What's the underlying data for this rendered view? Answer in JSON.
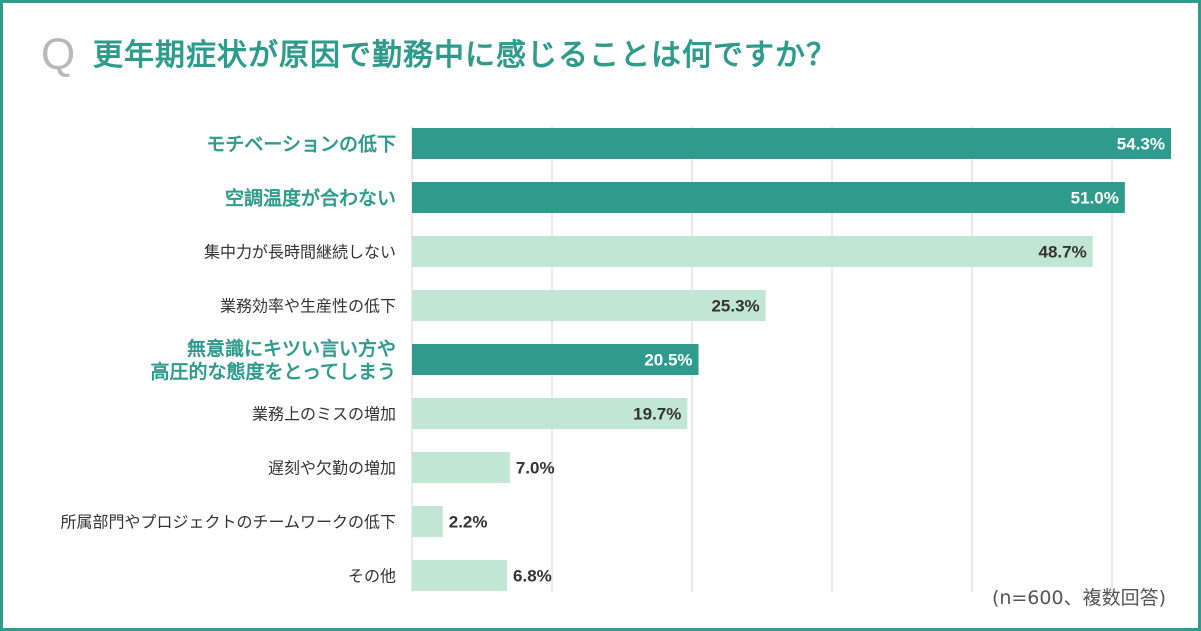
{
  "question_mark": "Q",
  "title": "更年期症状が原因で勤務中に感じることは何ですか？",
  "note": "(n=600、複数回答)",
  "colors": {
    "highlight": "#2e9b8c",
    "normal": "#c2e6d4",
    "grid": "#d6d6d6",
    "label_on_dark": "#ffffff",
    "label_on_light": "#333333"
  },
  "chart_data": {
    "type": "bar",
    "orientation": "horizontal",
    "xlim": [
      0,
      54.3
    ],
    "grid": true,
    "value_suffix": "%",
    "categories": [
      [
        "モチベーションの低下"
      ],
      [
        "空調温度が合わない"
      ],
      [
        "集中力が長時間継続しない"
      ],
      [
        "業務効率や生産性の低下"
      ],
      [
        "無意識にキツい言い方や",
        "高圧的な態度をとってしまう"
      ],
      [
        "業務上のミスの増加"
      ],
      [
        "遅刻や欠勤の増加"
      ],
      [
        "所属部門やプロジェクトのチームワークの低下"
      ],
      [
        "その他"
      ]
    ],
    "values": [
      54.3,
      51.0,
      48.7,
      25.3,
      20.5,
      19.7,
      7.0,
      2.2,
      6.8
    ],
    "value_labels": [
      "54.3%",
      "51.0%",
      "48.7%",
      "25.3%",
      "20.5%",
      "19.7%",
      "7.0%",
      "2.2%",
      "6.8%"
    ],
    "highlighted": [
      true,
      true,
      false,
      false,
      true,
      false,
      false,
      false,
      false
    ]
  }
}
